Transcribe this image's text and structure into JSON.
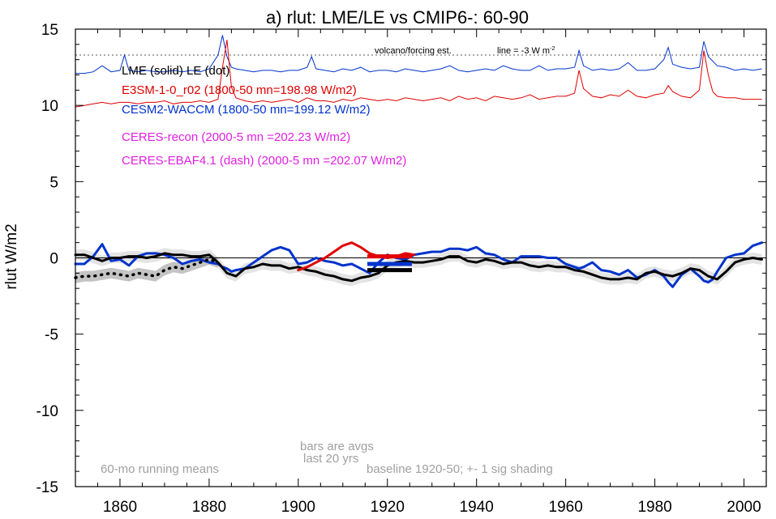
{
  "chart_data": {
    "type": "line",
    "title": "a) rlut: LME/LE vs CMIP6-: 60-90",
    "ylabel": "rlut W/m2",
    "xlabel": "",
    "xlim": [
      1850,
      2005
    ],
    "ylim": [
      -15,
      15
    ],
    "x_ticks": [
      1860,
      1880,
      1900,
      1920,
      1940,
      1960,
      1980,
      2000
    ],
    "y_ticks": [
      15,
      10,
      5,
      0,
      -5,
      -10,
      -15
    ],
    "y_tick_labels": [
      "15",
      "10",
      "5",
      "0",
      "-5",
      "-10",
      "-15"
    ],
    "grid": false,
    "legend": [
      {
        "label": "LME (solid)   LE (dot)",
        "color": "#000000"
      },
      {
        "label": "E3SM-1-0_r02 (1800-50 mn=198.98 W/m2)",
        "color": "#e00000"
      },
      {
        "label": "CESM2-WACCM (1800-50 mn=199.12 W/m2)",
        "color": "#0033cc"
      },
      {
        "label": "CERES-recon (2000-5 mn =202.23 W/m2)",
        "color": "#e020e0"
      },
      {
        "label": "CERES-EBAF4.1 (dash) (2000-5 mn =202.07 W/m2)",
        "color": "#e020e0"
      }
    ],
    "annotations": {
      "volcano": "volcano/forcing est.",
      "line_note": "line = -3 W m",
      "line_note_sup": "-2",
      "bars_note_1": "bars are avgs",
      "bars_note_2": "last 20 yrs",
      "baseline_note": "baseline 1920-50; +- 1 sig shading",
      "running_note": "60-mo running means"
    },
    "reference_lines": {
      "dotted_y": 13.3,
      "zero_y": 0
    },
    "series": [
      {
        "name": "CESM2-WACCM",
        "color": "#0033cc",
        "x": [
          1850,
          1852,
          1854,
          1856,
          1858,
          1860,
          1862,
          1864,
          1866,
          1868,
          1870,
          1872,
          1874,
          1876,
          1878,
          1880,
          1882,
          1883,
          1884,
          1885,
          1886,
          1888,
          1890,
          1892,
          1894,
          1896,
          1898,
          1900,
          1902,
          1904,
          1906,
          1908,
          1910,
          1912,
          1914,
          1916,
          1918,
          1920,
          1922,
          1924,
          1926,
          1928,
          1930,
          1932,
          1934,
          1936,
          1938,
          1940,
          1942,
          1944,
          1946,
          1948,
          1950,
          1952,
          1954,
          1956,
          1958,
          1960,
          1962,
          1963,
          1964,
          1966,
          1968,
          1970,
          1972,
          1974,
          1976,
          1978,
          1980,
          1982,
          1983,
          1984,
          1986,
          1988,
          1990,
          1991,
          1992,
          1993,
          1994,
          1996,
          1998,
          2000,
          2002,
          2004
        ],
        "values": [
          -0.4,
          -0.4,
          0.1,
          0.9,
          -0.2,
          -0.1,
          -0.5,
          0.1,
          0.3,
          0.3,
          0.2,
          0.0,
          -0.4,
          -0.2,
          -0.1,
          -0.3,
          -0.4,
          -0.6,
          -0.7,
          -0.9,
          -0.8,
          -0.7,
          -0.3,
          0.1,
          0.5,
          0.7,
          0.5,
          -0.4,
          -0.3,
          0.0,
          -0.2,
          -0.3,
          -0.5,
          -0.4,
          -0.7,
          -1.0,
          -0.3,
          0.2,
          0.0,
          -0.1,
          0.2,
          0.3,
          0.4,
          0.4,
          0.6,
          0.6,
          0.5,
          0.7,
          0.3,
          0.2,
          -0.1,
          -0.3,
          0.1,
          0.1,
          0.1,
          0.0,
          0.0,
          -0.4,
          -0.6,
          -0.7,
          -0.6,
          -0.3,
          -0.8,
          -0.9,
          -1.1,
          -0.8,
          -1.3,
          -1.1,
          -0.8,
          -1.2,
          -1.6,
          -1.9,
          -1.1,
          -0.7,
          -1.2,
          -1.5,
          -1.6,
          -1.4,
          -0.9,
          0.0,
          0.2,
          0.3,
          0.8,
          1.0
        ]
      },
      {
        "name": "LME",
        "color": "#000000",
        "x": [
          1850,
          1852,
          1854,
          1856,
          1858,
          1860,
          1862,
          1864,
          1866,
          1868,
          1870,
          1872,
          1874,
          1876,
          1878,
          1880,
          1882,
          1884,
          1886,
          1888,
          1890,
          1892,
          1894,
          1896,
          1898,
          1900,
          1902,
          1904,
          1906,
          1908,
          1910,
          1912,
          1914,
          1916,
          1918,
          1920,
          1922,
          1924,
          1926,
          1928,
          1930,
          1932,
          1934,
          1936,
          1938,
          1940,
          1942,
          1944,
          1946,
          1948,
          1950,
          1952,
          1954,
          1956,
          1958,
          1960,
          1962,
          1964,
          1966,
          1968,
          1970,
          1972,
          1974,
          1976,
          1978,
          1980,
          1982,
          1984,
          1986,
          1988,
          1990,
          1992,
          1994,
          1996,
          1998,
          2000,
          2002,
          2004
        ],
        "values": [
          0.2,
          0.2,
          0.0,
          -0.2,
          0.0,
          0.0,
          0.1,
          0.1,
          0.0,
          0.1,
          0.3,
          0.2,
          0.2,
          0.1,
          0.1,
          0.2,
          -0.3,
          -1.0,
          -1.2,
          -0.7,
          -0.6,
          -0.4,
          -0.5,
          -0.5,
          -0.7,
          -0.6,
          -0.8,
          -0.9,
          -1.1,
          -1.2,
          -1.4,
          -1.5,
          -1.3,
          -1.2,
          -1.0,
          -0.5,
          -0.3,
          -0.2,
          -0.3,
          -0.3,
          -0.2,
          -0.1,
          0.1,
          0.1,
          -0.2,
          -0.3,
          -0.1,
          -0.2,
          -0.4,
          -0.3,
          -0.3,
          -0.5,
          -0.6,
          -0.5,
          -0.6,
          -0.6,
          -0.8,
          -0.9,
          -1.1,
          -1.3,
          -1.4,
          -1.4,
          -1.3,
          -1.4,
          -1.0,
          -0.9,
          -1.1,
          -1.2,
          -1.0,
          -0.7,
          -0.8,
          -1.2,
          -1.4,
          -0.9,
          -0.3,
          -0.1,
          0.0,
          -0.1
        ]
      },
      {
        "name": "E3SM-1-0_r02",
        "color": "#e00000",
        "x": [
          1900,
          1902,
          1904,
          1906,
          1908,
          1910,
          1912,
          1914,
          1916,
          1918,
          1920,
          1922,
          1924,
          1926
        ],
        "values": [
          -0.8,
          -0.6,
          -0.3,
          0.0,
          0.4,
          0.8,
          1.0,
          0.7,
          0.3,
          0.1,
          0.0,
          0.1,
          0.3,
          0.2
        ]
      },
      {
        "name": "LE",
        "color": "#000000",
        "style": "dot",
        "x": [
          1850,
          1852,
          1854,
          1856,
          1858,
          1860,
          1862,
          1864,
          1866,
          1868,
          1870,
          1872,
          1874,
          1876,
          1878,
          1880,
          1882
        ],
        "values": [
          -1.3,
          -1.2,
          -1.2,
          -1.1,
          -1.0,
          -1.1,
          -1.2,
          -1.0,
          -1.1,
          -1.2,
          -0.8,
          -0.6,
          -0.7,
          -0.5,
          -0.3,
          -0.1,
          -0.3
        ]
      }
    ],
    "volcano_series": {
      "CESM2-WACCM": {
        "color": "#0033cc",
        "x": [
          1850,
          1852,
          1854,
          1856,
          1858,
          1860,
          1861,
          1862,
          1864,
          1866,
          1868,
          1870,
          1872,
          1874,
          1876,
          1878,
          1880,
          1882,
          1883,
          1884,
          1885,
          1886,
          1888,
          1890,
          1892,
          1894,
          1896,
          1898,
          1900,
          1902,
          1903,
          1904,
          1906,
          1908,
          1910,
          1912,
          1914,
          1916,
          1918,
          1920,
          1922,
          1924,
          1926,
          1928,
          1930,
          1932,
          1934,
          1936,
          1938,
          1940,
          1942,
          1944,
          1946,
          1948,
          1950,
          1952,
          1954,
          1956,
          1958,
          1960,
          1962,
          1963,
          1964,
          1966,
          1968,
          1970,
          1972,
          1974,
          1976,
          1978,
          1980,
          1982,
          1983,
          1984,
          1986,
          1988,
          1990,
          1991,
          1992,
          1994,
          1996,
          1998,
          2000,
          2002,
          2004
        ],
        "values": [
          12.1,
          12.1,
          12.2,
          12.6,
          12.2,
          12.3,
          13.3,
          12.3,
          12.2,
          12.3,
          12.2,
          12.2,
          12.3,
          12.2,
          12.3,
          12.2,
          12.4,
          13.3,
          14.6,
          13.2,
          12.5,
          12.4,
          12.3,
          12.2,
          12.3,
          12.3,
          12.2,
          12.3,
          12.3,
          12.5,
          13.2,
          12.4,
          12.3,
          12.2,
          12.4,
          12.3,
          12.5,
          12.2,
          12.3,
          12.3,
          12.2,
          12.4,
          12.3,
          12.2,
          12.3,
          12.4,
          12.6,
          12.3,
          12.2,
          12.3,
          12.4,
          12.3,
          12.6,
          12.4,
          12.3,
          12.3,
          12.6,
          12.3,
          12.4,
          12.4,
          12.5,
          13.6,
          12.6,
          12.3,
          12.4,
          12.3,
          12.4,
          12.8,
          12.3,
          12.3,
          12.4,
          13.0,
          13.8,
          12.7,
          12.5,
          12.4,
          12.5,
          14.2,
          13.2,
          12.6,
          12.5,
          12.3,
          12.4,
          12.3,
          12.4
        ]
      },
      "E3SM-1-0_r02": {
        "color": "#e00000",
        "x": [
          1850,
          1852,
          1854,
          1856,
          1858,
          1860,
          1862,
          1864,
          1866,
          1868,
          1870,
          1872,
          1874,
          1876,
          1878,
          1880,
          1882,
          1883,
          1884,
          1885,
          1886,
          1888,
          1890,
          1892,
          1894,
          1896,
          1898,
          1900,
          1902,
          1904,
          1906,
          1908,
          1910,
          1912,
          1914,
          1916,
          1918,
          1920,
          1922,
          1924,
          1926,
          1928,
          1930,
          1932,
          1934,
          1936,
          1938,
          1940,
          1942,
          1944,
          1946,
          1948,
          1950,
          1952,
          1954,
          1956,
          1958,
          1960,
          1962,
          1963,
          1964,
          1966,
          1968,
          1970,
          1972,
          1974,
          1976,
          1978,
          1980,
          1982,
          1983,
          1984,
          1986,
          1988,
          1990,
          1991,
          1992,
          1993,
          1994,
          1996,
          1998,
          2000,
          2002,
          2004
        ],
        "values": [
          9.9,
          10.0,
          10.1,
          10.2,
          10.1,
          10.2,
          10.2,
          10.1,
          10.2,
          10.2,
          10.3,
          10.1,
          10.2,
          10.2,
          10.3,
          10.2,
          10.4,
          12.5,
          14.3,
          11.2,
          10.5,
          10.3,
          10.2,
          10.3,
          10.2,
          10.3,
          10.4,
          10.2,
          10.5,
          10.3,
          10.3,
          10.2,
          10.4,
          10.3,
          10.5,
          10.4,
          10.3,
          10.4,
          10.3,
          10.5,
          10.4,
          10.3,
          10.4,
          10.5,
          10.3,
          10.6,
          10.4,
          10.5,
          10.3,
          10.6,
          10.5,
          10.4,
          10.5,
          10.7,
          10.4,
          10.5,
          10.6,
          10.6,
          10.8,
          12.3,
          11.1,
          10.6,
          10.5,
          10.7,
          10.6,
          11.0,
          10.6,
          10.5,
          10.7,
          10.8,
          11.3,
          10.9,
          10.6,
          10.5,
          11.0,
          13.6,
          12.0,
          10.9,
          10.6,
          10.5,
          10.5,
          10.4,
          10.4,
          10.4
        ]
      }
    },
    "shading": {
      "LME_band": {
        "half_width": 0.35
      },
      "LE_band": {
        "half_width": 0.35,
        "x_end": 1882
      }
    },
    "bars": [
      {
        "series": "E3SM-1-0_r02",
        "color": "#e00000",
        "x_start": 1915.5,
        "x_end": 1925.5,
        "value": 0.1
      },
      {
        "series": "CESM2-WACCM",
        "color": "#0033cc",
        "x_start": 1915.5,
        "x_end": 1925.5,
        "value": -0.4
      },
      {
        "series": "LME",
        "color": "#000000",
        "x_start": 1915.5,
        "x_end": 1925.5,
        "value": -0.8
      }
    ]
  }
}
